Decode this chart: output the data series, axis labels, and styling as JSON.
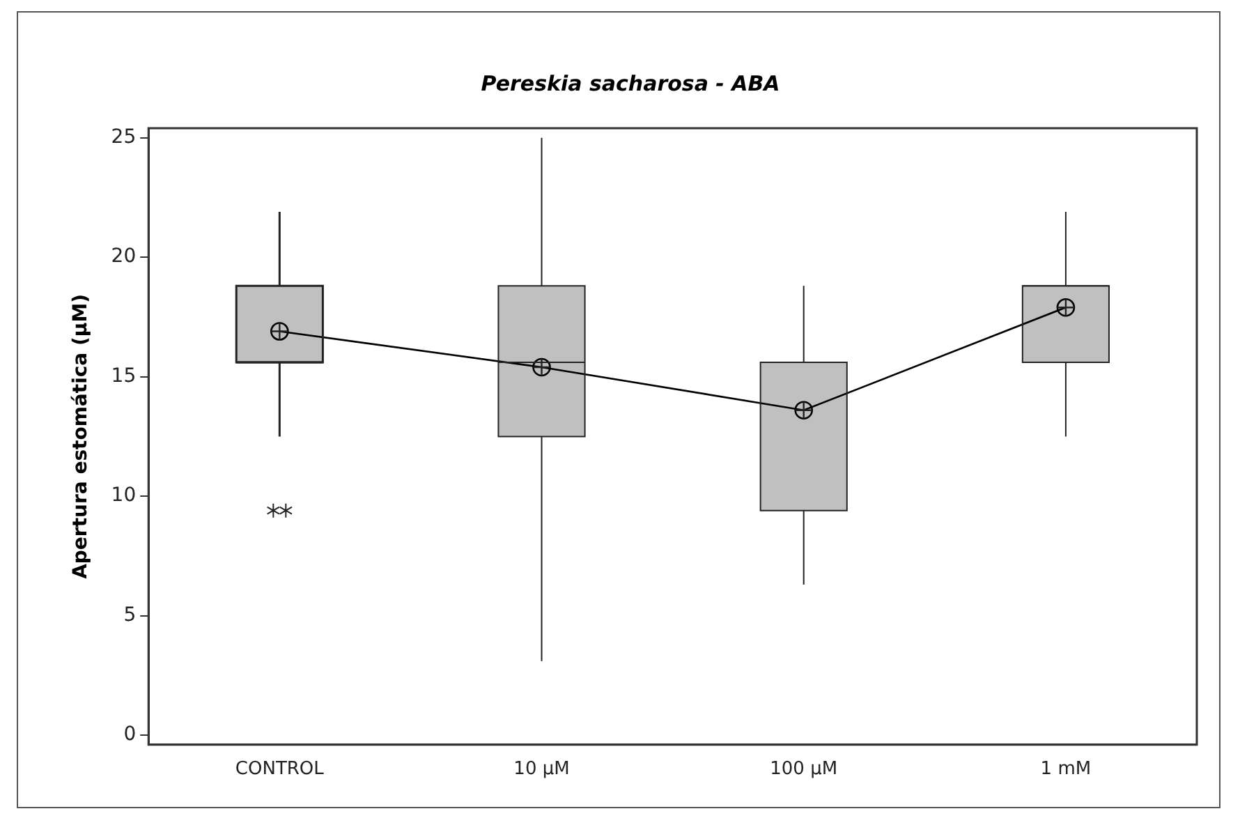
{
  "chart_data": {
    "type": "box",
    "title": "Pereskia sacharosa - ABA",
    "ylabel": "Apertura estomática (µM)",
    "categories": [
      "CONTROL",
      "10 µM",
      "100 µM",
      "1 mM"
    ],
    "color": "#c0c0c0",
    "boxes": [
      {
        "low": 12.5,
        "q1": 15.6,
        "median": 15.6,
        "q3": 18.8,
        "high": 21.9,
        "outliers": [
          9.4,
          9.4
        ]
      },
      {
        "low": 3.1,
        "q1": 12.5,
        "median": 15.6,
        "q3": 18.8,
        "high": 25
      },
      {
        "low": 6.3,
        "q1": 9.4,
        "median": 15.6,
        "q3": 15.6,
        "high": 18.8
      },
      {
        "low": 12.5,
        "q1": 15.6,
        "median": 18.8,
        "q3": 18.8,
        "high": 21.9
      }
    ],
    "series": [
      {
        "type": "line",
        "color": "#000000",
        "values": [
          16.9,
          15.4,
          13.6,
          17.9
        ]
      }
    ],
    "marker": "circle",
    "ylim": [
      -0.4,
      25.4
    ],
    "yticks": [
      0,
      5,
      10,
      15,
      20,
      25
    ],
    "grid": false,
    "legend": false
  }
}
